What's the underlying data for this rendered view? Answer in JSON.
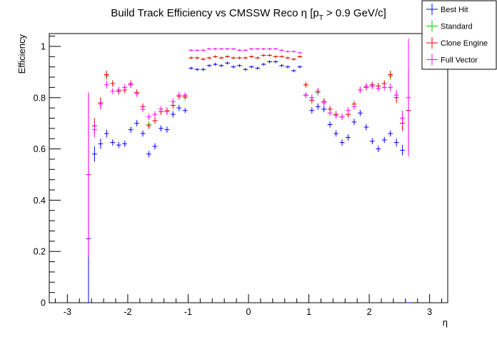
{
  "chart_data": {
    "type": "scatter",
    "title": "Build Track Efficiency vs CMSSW Reco η [p_T > 0.9 GeV/c]",
    "title_main": "Build Track Efficiency vs CMSSW Reco η [p",
    "title_sub": "T",
    "title_tail": " > 0.9 GeV/c]",
    "xlabel": "η",
    "ylabel": "Efficiency",
    "xlim": [
      -3.3,
      3.3
    ],
    "ylim": [
      0,
      1.05
    ],
    "xticks": [
      -3,
      -2,
      -1,
      0,
      1,
      2,
      3
    ],
    "yticks": [
      0,
      0.2,
      0.4,
      0.6,
      0.8,
      1
    ],
    "ytick_labels": [
      "0",
      "0.2",
      "0.4",
      "0.6",
      "0.8",
      "1"
    ],
    "bin_width": 0.1,
    "legend_placement": "top-right",
    "series": [
      {
        "name": "Best Hit",
        "color": "#0000ff",
        "x": [
          -2.65,
          -2.55,
          -2.45,
          -2.35,
          -2.25,
          -2.15,
          -2.05,
          -1.95,
          -1.85,
          -1.75,
          -1.65,
          -1.55,
          -1.45,
          -1.35,
          -1.25,
          -1.15,
          -1.05,
          -0.95,
          -0.85,
          -0.75,
          -0.65,
          -0.55,
          -0.45,
          -0.35,
          -0.25,
          -0.15,
          -0.05,
          0.05,
          0.15,
          0.25,
          0.35,
          0.45,
          0.55,
          0.65,
          0.75,
          0.85,
          0.95,
          1.05,
          1.15,
          1.25,
          1.35,
          1.45,
          1.55,
          1.65,
          1.75,
          1.85,
          1.95,
          2.05,
          2.15,
          2.25,
          2.35,
          2.45,
          2.55,
          2.65
        ],
        "y": [
          0.25,
          0.58,
          0.62,
          0.66,
          0.625,
          0.615,
          0.62,
          0.675,
          0.7,
          0.66,
          0.58,
          0.61,
          0.68,
          0.675,
          0.735,
          0.76,
          0.75,
          0.915,
          0.91,
          0.91,
          0.925,
          0.93,
          0.925,
          0.935,
          0.92,
          0.925,
          0.91,
          0.92,
          0.915,
          0.93,
          0.94,
          0.94,
          0.925,
          0.92,
          0.905,
          0.92,
          0.81,
          0.75,
          0.765,
          0.755,
          0.695,
          0.66,
          0.625,
          0.645,
          0.705,
          0.74,
          0.685,
          0.63,
          0.6,
          0.635,
          0.66,
          0.625,
          0.595,
          0.0
        ],
        "err": [
          0.25,
          0.03,
          0.02,
          0.015,
          0.012,
          0.012,
          0.012,
          0.012,
          0.012,
          0.012,
          0.012,
          0.012,
          0.012,
          0.012,
          0.012,
          0.012,
          0.01,
          0.006,
          0.006,
          0.006,
          0.006,
          0.006,
          0.006,
          0.006,
          0.006,
          0.006,
          0.006,
          0.006,
          0.006,
          0.006,
          0.006,
          0.006,
          0.006,
          0.006,
          0.006,
          0.006,
          0.01,
          0.012,
          0.012,
          0.012,
          0.012,
          0.012,
          0.012,
          0.012,
          0.012,
          0.012,
          0.012,
          0.012,
          0.012,
          0.012,
          0.012,
          0.015,
          0.02,
          0.0
        ]
      },
      {
        "name": "Standard",
        "color": "#00cc00",
        "x": [
          -2.65,
          -2.55,
          -2.45,
          -2.35,
          -2.25,
          -2.15,
          -2.05,
          -1.95,
          -1.85,
          -1.75,
          -1.65,
          -1.55,
          -1.45,
          -1.35,
          -1.25,
          -1.15,
          -1.05,
          -0.95,
          -0.85,
          -0.75,
          -0.65,
          -0.55,
          -0.45,
          -0.35,
          -0.25,
          -0.15,
          -0.05,
          0.05,
          0.15,
          0.25,
          0.35,
          0.45,
          0.55,
          0.65,
          0.75,
          0.85,
          0.95,
          1.05,
          1.15,
          1.25,
          1.35,
          1.45,
          1.55,
          1.65,
          1.75,
          1.85,
          1.95,
          2.05,
          2.15,
          2.25,
          2.35,
          2.45,
          2.55,
          2.65
        ],
        "y": [
          0.5,
          0.69,
          0.78,
          0.885,
          0.855,
          0.825,
          0.83,
          0.85,
          0.82,
          0.765,
          0.695,
          0.71,
          0.745,
          0.745,
          0.77,
          0.805,
          0.8,
          0.955,
          0.955,
          0.95,
          0.955,
          0.96,
          0.955,
          0.96,
          0.955,
          0.955,
          0.955,
          0.96,
          0.955,
          0.965,
          0.965,
          0.96,
          0.96,
          0.955,
          0.95,
          0.96,
          0.85,
          0.79,
          0.82,
          0.785,
          0.755,
          0.735,
          0.725,
          0.735,
          0.775,
          0.83,
          0.84,
          0.85,
          0.845,
          0.855,
          0.885,
          0.8,
          0.7,
          0.75
        ],
        "err": [
          0.32,
          0.03,
          0.02,
          0.015,
          0.012,
          0.012,
          0.012,
          0.012,
          0.012,
          0.012,
          0.012,
          0.012,
          0.012,
          0.012,
          0.012,
          0.012,
          0.01,
          0.005,
          0.005,
          0.005,
          0.005,
          0.005,
          0.005,
          0.005,
          0.005,
          0.005,
          0.005,
          0.005,
          0.005,
          0.005,
          0.005,
          0.005,
          0.005,
          0.005,
          0.005,
          0.005,
          0.01,
          0.012,
          0.012,
          0.012,
          0.012,
          0.012,
          0.012,
          0.012,
          0.012,
          0.012,
          0.012,
          0.012,
          0.012,
          0.012,
          0.015,
          0.02,
          0.03,
          0.16
        ]
      },
      {
        "name": "Clone Engine",
        "color": "#ff0000",
        "x": [
          -2.65,
          -2.55,
          -2.45,
          -2.35,
          -2.25,
          -2.15,
          -2.05,
          -1.95,
          -1.85,
          -1.75,
          -1.65,
          -1.55,
          -1.45,
          -1.35,
          -1.25,
          -1.15,
          -1.05,
          -0.95,
          -0.85,
          -0.75,
          -0.65,
          -0.55,
          -0.45,
          -0.35,
          -0.25,
          -0.15,
          -0.05,
          0.05,
          0.15,
          0.25,
          0.35,
          0.45,
          0.55,
          0.65,
          0.75,
          0.85,
          0.95,
          1.05,
          1.15,
          1.25,
          1.35,
          1.45,
          1.55,
          1.65,
          1.75,
          1.85,
          1.95,
          2.05,
          2.15,
          2.25,
          2.35,
          2.45,
          2.55,
          2.65
        ],
        "y": [
          0.5,
          0.69,
          0.78,
          0.89,
          0.855,
          0.825,
          0.83,
          0.855,
          0.82,
          0.765,
          0.69,
          0.71,
          0.745,
          0.75,
          0.77,
          0.805,
          0.805,
          0.955,
          0.955,
          0.95,
          0.955,
          0.96,
          0.955,
          0.96,
          0.955,
          0.955,
          0.955,
          0.96,
          0.955,
          0.965,
          0.965,
          0.96,
          0.96,
          0.955,
          0.95,
          0.96,
          0.85,
          0.79,
          0.825,
          0.785,
          0.755,
          0.735,
          0.725,
          0.735,
          0.775,
          0.83,
          0.84,
          0.85,
          0.845,
          0.855,
          0.89,
          0.8,
          0.7,
          0.75
        ],
        "err": [
          0.32,
          0.03,
          0.02,
          0.015,
          0.012,
          0.012,
          0.012,
          0.012,
          0.012,
          0.012,
          0.012,
          0.012,
          0.012,
          0.012,
          0.012,
          0.012,
          0.01,
          0.005,
          0.005,
          0.005,
          0.005,
          0.005,
          0.005,
          0.005,
          0.005,
          0.005,
          0.005,
          0.005,
          0.005,
          0.005,
          0.005,
          0.005,
          0.005,
          0.005,
          0.005,
          0.005,
          0.01,
          0.012,
          0.012,
          0.012,
          0.012,
          0.012,
          0.012,
          0.012,
          0.012,
          0.012,
          0.012,
          0.012,
          0.012,
          0.012,
          0.015,
          0.02,
          0.03,
          0.16
        ]
      },
      {
        "name": "Full Vector",
        "color": "#ff00ff",
        "x": [
          -2.65,
          -2.55,
          -2.45,
          -2.35,
          -2.25,
          -2.15,
          -2.05,
          -1.95,
          -1.85,
          -1.75,
          -1.65,
          -1.55,
          -1.45,
          -1.35,
          -1.25,
          -1.15,
          -1.05,
          -0.95,
          -0.85,
          -0.75,
          -0.65,
          -0.55,
          -0.45,
          -0.35,
          -0.25,
          -0.15,
          -0.05,
          0.05,
          0.15,
          0.25,
          0.35,
          0.45,
          0.55,
          0.65,
          0.75,
          0.85,
          0.95,
          1.05,
          1.15,
          1.25,
          1.35,
          1.45,
          1.55,
          1.65,
          1.75,
          1.85,
          1.95,
          2.05,
          2.15,
          2.25,
          2.35,
          2.45,
          2.55,
          2.65
        ],
        "y": [
          0.5,
          0.675,
          0.775,
          0.85,
          0.825,
          0.83,
          0.84,
          0.85,
          0.815,
          0.755,
          0.725,
          0.735,
          0.755,
          0.745,
          0.785,
          0.81,
          0.81,
          0.985,
          0.985,
          0.985,
          0.99,
          0.99,
          0.99,
          0.99,
          0.99,
          0.985,
          0.985,
          0.99,
          0.99,
          0.99,
          0.99,
          0.99,
          0.985,
          0.98,
          0.98,
          0.975,
          0.81,
          0.8,
          0.825,
          0.78,
          0.74,
          0.73,
          0.725,
          0.75,
          0.765,
          0.83,
          0.845,
          0.845,
          0.835,
          0.84,
          0.84,
          0.81,
          0.72,
          0.8
        ],
        "err": [
          0.32,
          0.03,
          0.02,
          0.015,
          0.012,
          0.012,
          0.012,
          0.012,
          0.012,
          0.012,
          0.012,
          0.012,
          0.012,
          0.012,
          0.012,
          0.012,
          0.01,
          0.004,
          0.004,
          0.004,
          0.004,
          0.004,
          0.004,
          0.004,
          0.004,
          0.004,
          0.004,
          0.004,
          0.004,
          0.004,
          0.004,
          0.004,
          0.004,
          0.004,
          0.004,
          0.004,
          0.01,
          0.012,
          0.012,
          0.012,
          0.012,
          0.012,
          0.012,
          0.012,
          0.012,
          0.012,
          0.012,
          0.012,
          0.012,
          0.012,
          0.015,
          0.02,
          0.03,
          0.23
        ]
      }
    ]
  }
}
